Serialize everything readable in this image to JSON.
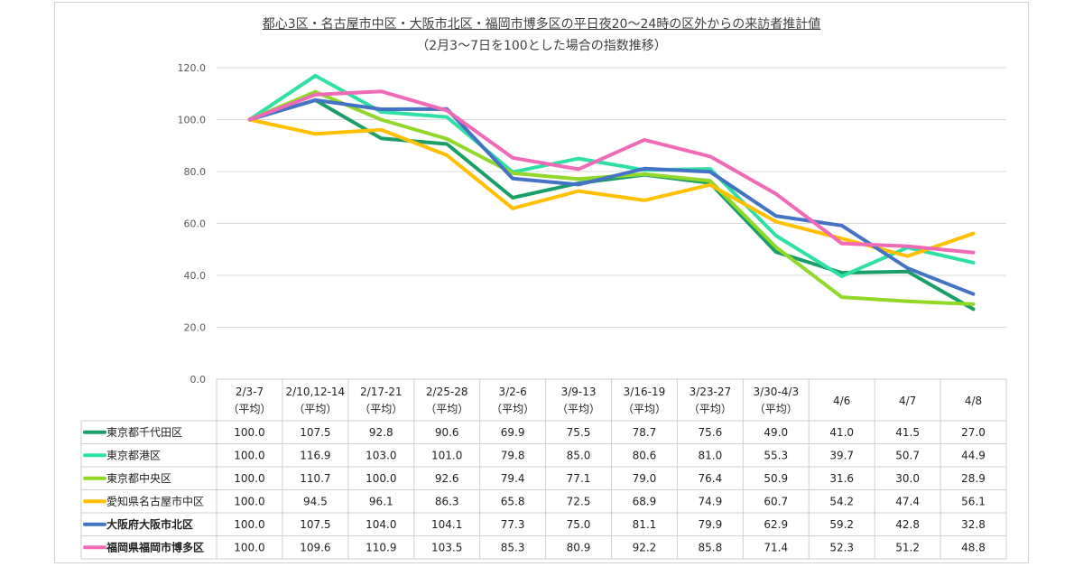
{
  "chart_data": {
    "type": "line",
    "title": "都心3区・名古屋市中区・大阪市北区・福岡市博多区の平日夜20〜24時の区外からの来訪者推計値",
    "subtitle": "（2月3〜7日を100とした場合の指数推移）",
    "ylim": [
      0,
      120
    ],
    "yticks": [
      "0.0",
      "20.0",
      "40.0",
      "60.0",
      "80.0",
      "100.0",
      "120.0"
    ],
    "grid": true,
    "legend_placement": "table-left",
    "categories": [
      {
        "line1": "2/3-7",
        "line2": "（平均）"
      },
      {
        "line1": "2/10,12-14",
        "line2": "（平均）"
      },
      {
        "line1": "2/17-21",
        "line2": "（平均）"
      },
      {
        "line1": "2/25-28",
        "line2": "（平均）"
      },
      {
        "line1": "3/2-6",
        "line2": "（平均）"
      },
      {
        "line1": "3/9-13",
        "line2": "（平均）"
      },
      {
        "line1": "3/16-19",
        "line2": "（平均）"
      },
      {
        "line1": "3/23-27",
        "line2": "（平均）"
      },
      {
        "line1": "3/30-4/3",
        "line2": "（平均）"
      },
      {
        "line1": "4/6",
        "line2": ""
      },
      {
        "line1": "4/7",
        "line2": ""
      },
      {
        "line1": "4/8",
        "line2": ""
      }
    ],
    "series": [
      {
        "name": "東京都千代田区",
        "color": "#1a9e68",
        "bold": false,
        "values": [
          100.0,
          107.5,
          92.8,
          90.6,
          69.9,
          75.5,
          78.7,
          75.6,
          49.0,
          41.0,
          41.5,
          27.0
        ],
        "labels": [
          "100.0",
          "107.5",
          "92.8",
          "90.6",
          "69.9",
          "75.5",
          "78.7",
          "75.6",
          "49.0",
          "41.0",
          "41.5",
          "27.0"
        ]
      },
      {
        "name": "東京都港区",
        "color": "#2ee0a4",
        "bold": false,
        "values": [
          100.0,
          116.9,
          103.0,
          101.0,
          79.8,
          85.0,
          80.6,
          81.0,
          55.3,
          39.7,
          50.7,
          44.9
        ],
        "labels": [
          "100.0",
          "116.9",
          "103.0",
          "101.0",
          "79.8",
          "85.0",
          "80.6",
          "81.0",
          "55.3",
          "39.7",
          "50.7",
          "44.9"
        ]
      },
      {
        "name": "東京都中央区",
        "color": "#92d82a",
        "bold": false,
        "values": [
          100.0,
          110.7,
          100.0,
          92.6,
          79.4,
          77.1,
          79.0,
          76.4,
          50.9,
          31.6,
          30.0,
          28.9
        ],
        "labels": [
          "100.0",
          "110.7",
          "100.0",
          "92.6",
          "79.4",
          "77.1",
          "79.0",
          "76.4",
          "50.9",
          "31.6",
          "30.0",
          "28.9"
        ]
      },
      {
        "name": "愛知県名古屋市中区",
        "color": "#ffc000",
        "bold": false,
        "values": [
          100.0,
          94.5,
          96.1,
          86.3,
          65.8,
          72.5,
          68.9,
          74.9,
          60.7,
          54.2,
          47.4,
          56.1
        ],
        "labels": [
          "100.0",
          "94.5",
          "96.1",
          "86.3",
          "65.8",
          "72.5",
          "68.9",
          "74.9",
          "60.7",
          "54.2",
          "47.4",
          "56.1"
        ]
      },
      {
        "name": "大阪府大阪市北区",
        "color": "#4472c4",
        "bold": true,
        "values": [
          100.0,
          107.5,
          104.0,
          104.1,
          77.3,
          75.0,
          81.1,
          79.9,
          62.9,
          59.2,
          42.8,
          32.8
        ],
        "labels": [
          "100.0",
          "107.5",
          "104.0",
          "104.1",
          "77.3",
          "75.0",
          "81.1",
          "79.9",
          "62.9",
          "59.2",
          "42.8",
          "32.8"
        ]
      },
      {
        "name": "福岡県福岡市博多区",
        "color": "#f06ab8",
        "bold": true,
        "values": [
          100.0,
          109.6,
          110.9,
          103.5,
          85.3,
          80.9,
          92.2,
          85.8,
          71.4,
          52.3,
          51.2,
          48.8
        ],
        "labels": [
          "100.0",
          "109.6",
          "110.9",
          "103.5",
          "85.3",
          "80.9",
          "92.2",
          "85.8",
          "71.4",
          "52.3",
          "51.2",
          "48.8"
        ]
      }
    ]
  }
}
